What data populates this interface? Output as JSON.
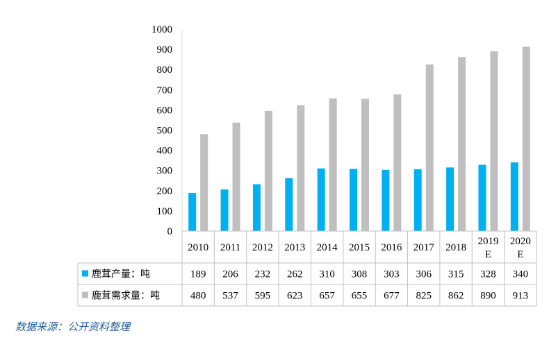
{
  "chart_data": {
    "type": "bar",
    "categories": [
      "2010",
      "2011",
      "2012",
      "2013",
      "2014",
      "2015",
      "2016",
      "2017",
      "2018",
      "2019\nE",
      "2020\nE"
    ],
    "series": [
      {
        "name": "鹿茸产量：吨",
        "color": "#00b0f0",
        "values": [
          189,
          206,
          232,
          262,
          310,
          308,
          303,
          306,
          315,
          328,
          340
        ]
      },
      {
        "name": "鹿茸需求量：吨",
        "color": "#bfbfbf",
        "values": [
          480,
          537,
          595,
          623,
          657,
          655,
          677,
          825,
          862,
          890,
          913
        ]
      }
    ],
    "ylim": [
      0,
      1000
    ],
    "yticks": [
      0,
      100,
      200,
      300,
      400,
      500,
      600,
      700,
      800,
      900,
      1000
    ],
    "grid": false,
    "data_table": true
  },
  "source_note": "数据来源：公开资料整理"
}
